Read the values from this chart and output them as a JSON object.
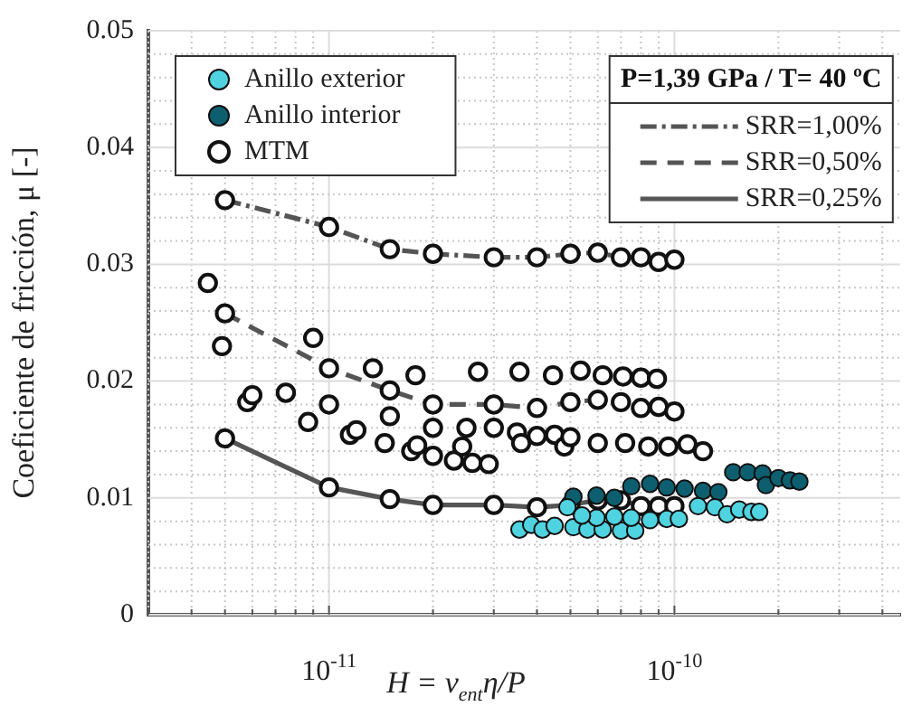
{
  "chart_data": {
    "type": "scatter",
    "xlabel": "H = v$_{ent}$η/P",
    "ylabel": "Coeficiente de fricción, μ [-]",
    "legend_title": "P=1,39 GPa / T= 40 ºC",
    "log": "x",
    "grid": true,
    "legend": "top",
    "marker": "circle",
    "xlim": [
      3e-12,
      4.5e-10
    ],
    "xticks": [
      {
        "value": 3e-12,
        "label": null
      },
      {
        "value": 4e-12,
        "label": null
      },
      {
        "value": 5e-12,
        "label": null
      },
      {
        "value": 6e-12,
        "label": null
      },
      {
        "value": 7e-12,
        "label": null
      },
      {
        "value": 8e-12,
        "label": null
      },
      {
        "value": 9e-12,
        "label": null
      },
      {
        "value": 1e-11,
        "label": "10$^{-11}$"
      },
      {
        "value": 2e-11,
        "label": null
      },
      {
        "value": 3e-11,
        "label": null
      },
      {
        "value": 4e-11,
        "label": null
      },
      {
        "value": 5e-11,
        "label": null
      },
      {
        "value": 6e-11,
        "label": null
      },
      {
        "value": 7e-11,
        "label": null
      },
      {
        "value": 8e-11,
        "label": null
      },
      {
        "value": 9e-11,
        "label": null
      },
      {
        "value": 1e-10,
        "label": "10$^{-10}$"
      },
      {
        "value": 2e-10,
        "label": null
      },
      {
        "value": 3e-10,
        "label": null
      },
      {
        "value": 4e-10,
        "label": null
      }
    ],
    "ylim": [
      0,
      0.05
    ],
    "yticks": [
      0,
      {
        "value": 0.002,
        "label": null
      },
      {
        "value": 0.004,
        "label": null
      },
      {
        "value": 0.006,
        "label": null
      },
      {
        "value": 0.008,
        "label": null
      },
      0.01,
      {
        "value": 0.012,
        "label": null
      },
      {
        "value": 0.014,
        "label": null
      },
      {
        "value": 0.016,
        "label": null
      },
      {
        "value": 0.018,
        "label": null
      },
      0.02,
      {
        "value": 0.022,
        "label": null
      },
      {
        "value": 0.024,
        "label": null
      },
      {
        "value": 0.026,
        "label": null
      },
      {
        "value": 0.028,
        "label": null
      },
      0.03,
      {
        "value": 0.032,
        "label": null
      },
      {
        "value": 0.034,
        "label": null
      },
      {
        "value": 0.036,
        "label": null
      },
      {
        "value": 0.038,
        "label": null
      },
      0.04,
      {
        "value": 0.042,
        "label": null
      },
      {
        "value": 0.044,
        "label": null
      },
      {
        "value": 0.046,
        "label": null
      },
      {
        "value": 0.048,
        "label": null
      },
      0.05
    ],
    "series": [
      {
        "name": "Anillo exterior",
        "type": "scatter",
        "color": "#4fd3e0",
        "x": [
          3.56e-11,
          3.85e-11,
          4.15e-11,
          4.5e-11,
          5.1e-11,
          5.6e-11,
          6.2e-11,
          7e-11,
          7.7e-11,
          5.95e-11,
          6.7e-11,
          7.5e-11,
          8.5e-11,
          9.5e-11,
          1.03e-10,
          1.17e-10,
          1.31e-10,
          1.42e-10,
          1.54e-10,
          1.67e-10,
          1.76e-10,
          5.4e-11,
          4.9e-11
        ],
        "values": [
          0.0073,
          0.0077,
          0.0073,
          0.0076,
          0.0075,
          0.0073,
          0.0073,
          0.0072,
          0.0072,
          0.0083,
          0.0084,
          0.0083,
          0.0081,
          0.0082,
          0.0082,
          0.0093,
          0.0092,
          0.0086,
          0.009,
          0.0088,
          0.0088,
          0.0085,
          0.0092
        ]
      },
      {
        "name": "Anillo interior",
        "type": "scatter",
        "color": "#0d5f70",
        "x": [
          5.1e-11,
          5.95e-11,
          6.7e-11,
          7.5e-11,
          8.5e-11,
          9.5e-11,
          1.07e-10,
          1.21e-10,
          1.34e-10,
          1.48e-10,
          1.63e-10,
          1.8e-10,
          1.84e-10,
          2e-10,
          2.16e-10,
          2.3e-10
        ],
        "values": [
          0.0101,
          0.0102,
          0.01,
          0.011,
          0.0112,
          0.0109,
          0.0108,
          0.0106,
          0.0105,
          0.0122,
          0.0122,
          0.0121,
          0.0111,
          0.0117,
          0.0115,
          0.0114
        ]
      },
      {
        "name": "MTM",
        "type": "scatter",
        "color": "#ffffff",
        "x": [
          5e-12,
          1e-11,
          1.5e-11,
          2e-11,
          3e-11,
          4e-11,
          5e-11,
          6e-11,
          7e-11,
          8e-11,
          9e-11,
          1e-10,
          5e-12,
          1e-11,
          1.5e-11,
          2e-11,
          3e-11,
          4e-11,
          5e-11,
          6e-11,
          7e-11,
          8e-11,
          9e-11,
          1e-10,
          5e-12,
          1e-11,
          1.5e-11,
          2e-11,
          3e-11,
          4e-11,
          5e-11,
          6e-11,
          7e-11,
          8e-11,
          9e-11,
          1e-10,
          4.46e-12,
          4.9e-12,
          5.8e-12,
          6e-12,
          7.5e-12,
          8.7e-12,
          9e-12,
          1e-11,
          1.15e-11,
          1.2e-11,
          1.34e-11,
          1.45e-11,
          1.5e-11,
          1.73e-11,
          1.8e-11,
          1.78e-11,
          2e-11,
          2e-11,
          2.3e-11,
          2.43e-11,
          2.5e-11,
          2.6e-11,
          2.7e-11,
          2.9e-11,
          3e-11,
          3.5e-11,
          3.56e-11,
          3.6e-11,
          4e-11,
          4.45e-11,
          4.5e-11,
          4.8e-11,
          5e-11,
          5.35e-11,
          6e-11,
          6.2e-11,
          7.1e-11,
          7.2e-11,
          8e-11,
          8.4e-11,
          8.9e-11,
          9.6e-11,
          1.09e-10,
          1.21e-10
        ],
        "values": [
          0.0355,
          0.0332,
          0.0313,
          0.0309,
          0.0306,
          0.0306,
          0.0309,
          0.031,
          0.0306,
          0.0306,
          0.0302,
          0.0304,
          0.0258,
          0.0211,
          0.0192,
          0.018,
          0.018,
          0.0177,
          0.0182,
          0.0184,
          0.0182,
          0.0177,
          0.0178,
          0.0174,
          0.0151,
          0.0109,
          0.0099,
          0.0094,
          0.0094,
          0.0092,
          0.0094,
          0.0098,
          0.0098,
          0.0093,
          0.0093,
          0.0093,
          0.0284,
          0.023,
          0.0182,
          0.0188,
          0.019,
          0.0165,
          0.0237,
          0.018,
          0.0154,
          0.0158,
          0.0211,
          0.0147,
          0.017,
          0.014,
          0.0145,
          0.0205,
          0.016,
          0.0136,
          0.0132,
          0.0144,
          0.016,
          0.013,
          0.0208,
          0.0129,
          0.016,
          0.0156,
          0.0208,
          0.0147,
          0.0153,
          0.0205,
          0.0154,
          0.0144,
          0.0152,
          0.0209,
          0.0147,
          0.0205,
          0.0204,
          0.0147,
          0.0203,
          0.0144,
          0.0202,
          0.0144,
          0.0146,
          0.014
        ]
      },
      {
        "name": "SRR=1,00%",
        "type": "line",
        "marker": "none",
        "line_style": "dashdot",
        "color": "#555555",
        "x": [
          5e-12,
          1e-11,
          1.5e-11,
          2e-11,
          3e-11,
          4e-11,
          5e-11,
          6e-11,
          7e-11,
          8e-11,
          9e-11,
          1e-10
        ],
        "values": [
          0.0355,
          0.0332,
          0.0313,
          0.0309,
          0.0306,
          0.0306,
          0.0309,
          0.031,
          0.0306,
          0.0306,
          0.0302,
          0.0304
        ]
      },
      {
        "name": "SRR=0,50%",
        "type": "line",
        "marker": "none",
        "line_style": "dashed",
        "color": "#555555",
        "x": [
          5e-12,
          1e-11,
          1.5e-11,
          2e-11,
          3e-11,
          4e-11,
          5e-11,
          6e-11,
          7e-11,
          8e-11,
          9e-11,
          1e-10
        ],
        "values": [
          0.0258,
          0.0211,
          0.0192,
          0.018,
          0.018,
          0.0177,
          0.0182,
          0.0184,
          0.0182,
          0.0177,
          0.0178,
          0.0174
        ]
      },
      {
        "name": "SRR=0,25%",
        "type": "line",
        "marker": "none",
        "line_style": "solid",
        "color": "#555555",
        "x": [
          5e-12,
          1e-11,
          1.5e-11,
          2e-11,
          3e-11,
          4e-11,
          5e-11,
          6e-11,
          7e-11,
          8e-11,
          9e-11,
          1e-10
        ],
        "values": [
          0.0151,
          0.0109,
          0.0099,
          0.0094,
          0.0094,
          0.0092,
          0.0094,
          0.0098,
          0.0098,
          0.0093,
          0.0093,
          0.0093
        ]
      }
    ]
  }
}
